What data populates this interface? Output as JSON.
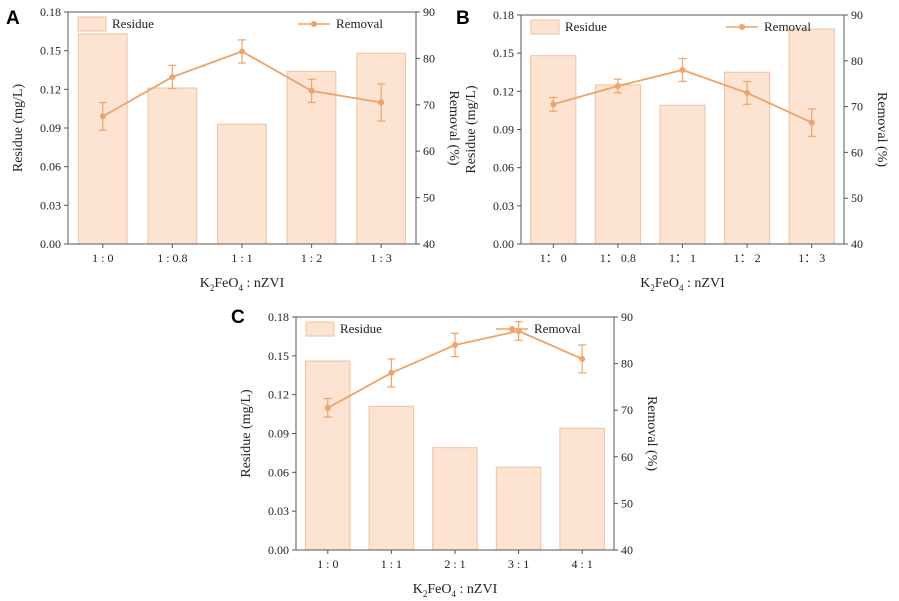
{
  "colors": {
    "bar_fill": "#fce3d2",
    "bar_stroke": "#f2c0a2",
    "line": "#eda46a",
    "axis": "#555555"
  },
  "chart_data": [
    {
      "panel": "A",
      "type": "bar+line",
      "categories": [
        "1 : 0",
        "1 : 0.8",
        "1 : 1",
        "1 : 2",
        "1 : 3"
      ],
      "xlabel": {
        "main": "K",
        "sub1": "2",
        "mid": "FeO",
        "sub2": "4",
        "tail": " : nZVI"
      },
      "ylabel": "Residue (mg/L)",
      "y2label": "Removal (%)",
      "ylim": [
        0,
        0.18
      ],
      "yticks": [
        "0.00",
        "0.03",
        "0.06",
        "0.09",
        "0.12",
        "0.15",
        "0.18"
      ],
      "y2lim": [
        40,
        90
      ],
      "y2ticks": [
        "40",
        "50",
        "60",
        "70",
        "80",
        "90"
      ],
      "legend": {
        "bar": "Residue",
        "line": "Removal"
      },
      "series": [
        {
          "name": "Residue",
          "kind": "bar",
          "values": [
            0.163,
            0.121,
            0.093,
            0.134,
            0.148
          ]
        },
        {
          "name": "Removal",
          "kind": "line",
          "values": [
            67.5,
            76.0,
            81.5,
            73.0,
            70.5
          ],
          "errors": [
            3.0,
            2.5,
            2.5,
            2.5,
            4.0
          ]
        }
      ]
    },
    {
      "panel": "B",
      "type": "bar+line",
      "categories": [
        "1： 0",
        "1： 0.8",
        "1： 1",
        "1： 2",
        "1： 3"
      ],
      "xlabel": {
        "main": "K",
        "sub1": "2",
        "mid": "FeO",
        "sub2": "4",
        "tail": " : nZVI"
      },
      "ylabel": "Residue (mg/L)",
      "y2label": "Removal (%)",
      "ylim": [
        0,
        0.18
      ],
      "yticks": [
        "0.00",
        "0.03",
        "0.06",
        "0.09",
        "0.12",
        "0.15",
        "0.18"
      ],
      "y2lim": [
        40,
        90
      ],
      "y2ticks": [
        "40",
        "50",
        "60",
        "70",
        "80",
        "90"
      ],
      "legend": {
        "bar": "Residue",
        "line": "Removal"
      },
      "series": [
        {
          "name": "Residue",
          "kind": "bar",
          "values": [
            0.148,
            0.125,
            0.109,
            0.135,
            0.169
          ]
        },
        {
          "name": "Removal",
          "kind": "line",
          "values": [
            70.5,
            74.5,
            78.0,
            73.0,
            66.5
          ],
          "errors": [
            1.5,
            1.5,
            2.5,
            2.5,
            3.0
          ]
        }
      ]
    },
    {
      "panel": "C",
      "type": "bar+line",
      "categories": [
        "1 : 0",
        "1 : 1",
        "2 : 1",
        "3 : 1",
        "4 : 1"
      ],
      "xlabel": {
        "main": "K",
        "sub1": "2",
        "mid": "FeO",
        "sub2": "4",
        "tail": " : nZVI"
      },
      "ylabel": "Residue (mg/L)",
      "y2label": "Removal (%)",
      "ylim": [
        0,
        0.18
      ],
      "yticks": [
        "0.00",
        "0.03",
        "0.06",
        "0.09",
        "0.12",
        "0.15",
        "0.18"
      ],
      "y2lim": [
        40,
        90
      ],
      "y2ticks": [
        "40",
        "50",
        "60",
        "70",
        "80",
        "90"
      ],
      "legend": {
        "bar": "Residue",
        "line": "Removal"
      },
      "series": [
        {
          "name": "Residue",
          "kind": "bar",
          "values": [
            0.146,
            0.111,
            0.079,
            0.064,
            0.094
          ]
        },
        {
          "name": "Removal",
          "kind": "line",
          "values": [
            70.5,
            78.0,
            84.0,
            87.0,
            81.0
          ],
          "errors": [
            2.0,
            3.0,
            2.5,
            2.0,
            3.0
          ]
        }
      ]
    }
  ]
}
